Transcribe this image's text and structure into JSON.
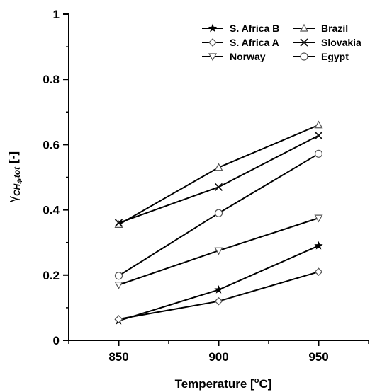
{
  "chart_data": {
    "type": "line",
    "x": [
      850,
      900,
      950
    ],
    "xlabel": "Temperature [",
    "xlabel_sup": "o",
    "xlabel_tail": "C]",
    "ylabel": "[-]",
    "ylabel_symbol": "γ",
    "ylabel_sub": "CH",
    "ylabel_sub2": "4",
    "ylabel_sub3": ",tot",
    "xlim": [
      825,
      975
    ],
    "ylim": [
      0,
      1
    ],
    "xticks": [
      850,
      900,
      950
    ],
    "yticks": [
      0,
      0.2,
      0.4,
      0.6,
      0.8,
      1
    ],
    "ytick_labels": [
      "0",
      "0.2",
      "0.4",
      "0.6",
      "0.8",
      "1"
    ],
    "grid": false,
    "legend_position": "top-right",
    "series": [
      {
        "name": "S. Africa B",
        "marker": "star",
        "values": [
          0.06,
          0.155,
          0.29
        ]
      },
      {
        "name": "S. Africa A",
        "marker": "diamond",
        "values": [
          0.065,
          0.12,
          0.21
        ]
      },
      {
        "name": "Norway",
        "marker": "triangle-down",
        "values": [
          0.17,
          0.275,
          0.375
        ]
      },
      {
        "name": "Brazil",
        "marker": "triangle-up",
        "values": [
          0.355,
          0.53,
          0.66
        ]
      },
      {
        "name": "Slovakia",
        "marker": "x",
        "values": [
          0.36,
          0.47,
          0.628
        ]
      },
      {
        "name": "Egypt",
        "marker": "circle",
        "values": [
          0.198,
          0.39,
          0.572
        ]
      }
    ],
    "colors": {
      "line": "#000000",
      "marker_edge": "#555555"
    }
  }
}
